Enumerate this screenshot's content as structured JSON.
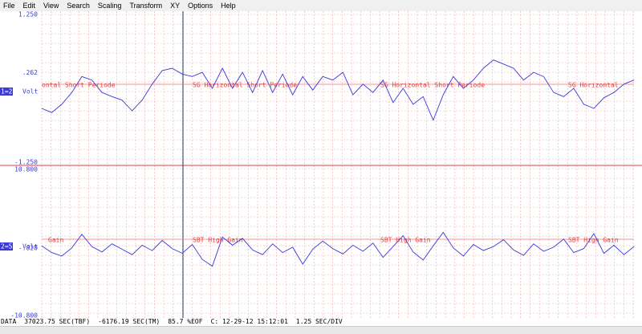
{
  "menu": [
    "File",
    "Edit",
    "View",
    "Search",
    "Scaling",
    "Transform",
    "XY",
    "Options",
    "Help"
  ],
  "chart_data": [
    {
      "type": "line",
      "channel": "1=2",
      "unit": "Volt",
      "ylim": [
        -1.25,
        1.25
      ],
      "yticks": [
        {
          "value": 1.25,
          "label": "1.250"
        },
        {
          "value": 0.262,
          "label": ".262"
        },
        {
          "value": -1.25,
          "label": "-1.250"
        }
      ],
      "annotations": [
        "ontal Short Periode",
        "SG Horizontal Short Periode",
        "SG Horizontal Short Periode",
        "SG Horizontal"
      ],
      "series": [
        {
          "color": "#3a3ad8",
          "values": [
            -0.34,
            -0.41,
            -0.27,
            -0.07,
            0.2,
            0.14,
            -0.07,
            -0.14,
            -0.2,
            -0.38,
            -0.2,
            0.07,
            0.3,
            0.34,
            0.24,
            0.2,
            0.27,
            0,
            0.34,
            0,
            0.27,
            -0.07,
            0.3,
            -0.07,
            0.24,
            -0.11,
            0.2,
            -0.03,
            0.2,
            0.14,
            0.27,
            -0.11,
            0.07,
            -0.07,
            0.14,
            -0.24,
            0,
            -0.27,
            -0.14,
            -0.54,
            -0.11,
            0.2,
            0,
            0.14,
            0.34,
            0.48,
            0.41,
            0.34,
            0.14,
            0.27,
            0.2,
            -0.07,
            -0.14,
            0,
            -0.27,
            -0.34,
            -0.16,
            -0.07,
            0.07,
            0.14
          ]
        }
      ]
    },
    {
      "type": "line",
      "channel": "2=5",
      "unit": "Volt",
      "ylim": [
        -10.8,
        10.8
      ],
      "yticks": [
        {
          "value": 10.8,
          "label": "10.800"
        },
        {
          "value": -0.82,
          "label": "-.820"
        },
        {
          "value": -10.8,
          "label": "-10.800"
        }
      ],
      "annotations": [
        "Gain",
        "SBT High Gain",
        "SBT High Gain",
        "SBT High Gain"
      ],
      "series": [
        {
          "color": "#3a3ad8",
          "values": [
            -0.5,
            -1.5,
            -2,
            -0.8,
            1.2,
            -0.6,
            -1.4,
            -0.2,
            -1,
            -1.8,
            -0.4,
            -1.2,
            0.3,
            -0.9,
            -1.6,
            -0.3,
            -2.5,
            -3.5,
            0.8,
            -0.4,
            0.6,
            -1.1,
            -1.8,
            -0.2,
            -1.5,
            -0.7,
            -3.2,
            -1,
            0.2,
            -0.9,
            -1.7,
            -0.4,
            -1.3,
            -0.1,
            -2.2,
            -0.6,
            1,
            -1.4,
            -2.6,
            -0.5,
            1.5,
            -0.8,
            -2,
            -0.3,
            -1.2,
            -0.6,
            0.4,
            -1.1,
            -1.9,
            -0.2,
            -1.3,
            -0.7,
            0.5,
            -1.5,
            -0.9,
            1.3,
            -1.6,
            -0.4,
            -1.8,
            -0.6
          ]
        }
      ]
    }
  ],
  "status": [
    "DATA",
    "37023.75 SEC(TBF)",
    "-6176.19 SEC(TM)",
    "85.7 %EOF",
    "C: 12-29-12 15:12:01",
    "1.25 SEC/DIV"
  ]
}
